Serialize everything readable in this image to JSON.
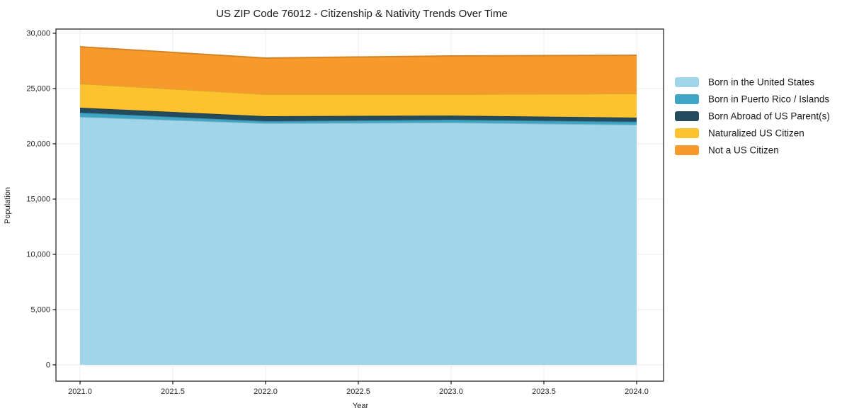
{
  "figure": {
    "background": "#ffffff",
    "text_color": "#1a1a1a",
    "spine_color": "#262626",
    "grid_color": "#ececec"
  },
  "chart_data": {
    "type": "area",
    "stacked": true,
    "title": "US ZIP Code 76012 - Citizenship & Nativity Trends Over Time",
    "xlabel": "Year",
    "ylabel": "Population",
    "x": [
      2021,
      2022,
      2023,
      2024
    ],
    "series": [
      {
        "name": "Born in the United States",
        "color": "#a1d5ea",
        "values": [
          22440,
          21860,
          21920,
          21730
        ]
      },
      {
        "name": "Born in Puerto Rico / Islands",
        "color": "#3ea6c4",
        "values": [
          380,
          190,
          260,
          270
        ]
      },
      {
        "name": "Born Abroad of US Parent(s)",
        "color": "#234b5d",
        "values": [
          450,
          450,
          380,
          370
        ]
      },
      {
        "name": "Naturalized US Citizen",
        "color": "#fdc32f",
        "values": [
          2180,
          1990,
          1930,
          2180
        ]
      },
      {
        "name": "Not a US Citizen",
        "color": "#f8992b",
        "values": [
          3330,
          3270,
          3460,
          3460
        ]
      }
    ],
    "stack_totals": [
      28780,
      27760,
      27950,
      28010
    ],
    "xticks": [
      2021.0,
      2021.5,
      2022.0,
      2022.5,
      2023.0,
      2023.5,
      2024.0
    ],
    "xtick_labels": [
      "2021.0",
      "2021.5",
      "2022.0",
      "2022.5",
      "2023.0",
      "2023.5",
      "2024.0"
    ],
    "yticks": [
      0,
      5000,
      10000,
      15000,
      20000,
      25000,
      30000
    ],
    "ytick_labels": [
      "0",
      "5,000",
      "10,000",
      "15,000",
      "20,000",
      "25,000",
      "30,000"
    ],
    "xlim": [
      2020.87,
      2024.15
    ],
    "ylim": [
      -1470,
      30350
    ],
    "grid": true,
    "legend_position": "right of plot, vertical"
  }
}
